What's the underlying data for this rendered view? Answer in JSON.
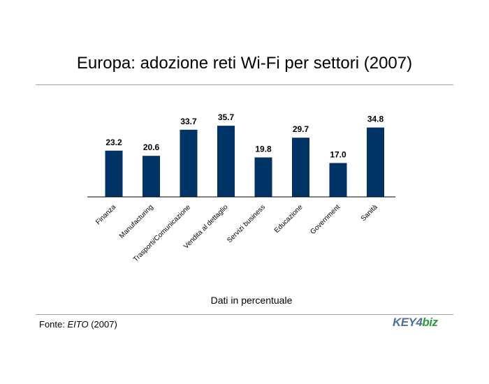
{
  "title": "Europa: adozione reti Wi-Fi per settori (2007)",
  "note": "Dati in percentuale",
  "source": {
    "prefix": "Fonte: ",
    "name": "EITO",
    "suffix": " (2007)"
  },
  "logo": {
    "part1": "KEY4",
    "part2": "biz"
  },
  "colors": {
    "bar": "#003366",
    "rule": "#a6a6a6"
  },
  "chart_data": {
    "type": "bar",
    "categories": [
      "Finanza",
      "Manufacturing",
      "Trasporti/Comunicazione",
      "Vendita al dettaglio",
      "Servizi business",
      "Educazione",
      "Government",
      "Sanità"
    ],
    "values": [
      23.2,
      20.6,
      33.7,
      35.7,
      19.8,
      29.7,
      17.0,
      34.8
    ],
    "value_labels": [
      "23.2",
      "20.6",
      "33.7",
      "35.7",
      "19.8",
      "29.7",
      "17.0",
      "34.8"
    ],
    "ylim": [
      0,
      50
    ],
    "grid": false,
    "legend": "none"
  }
}
